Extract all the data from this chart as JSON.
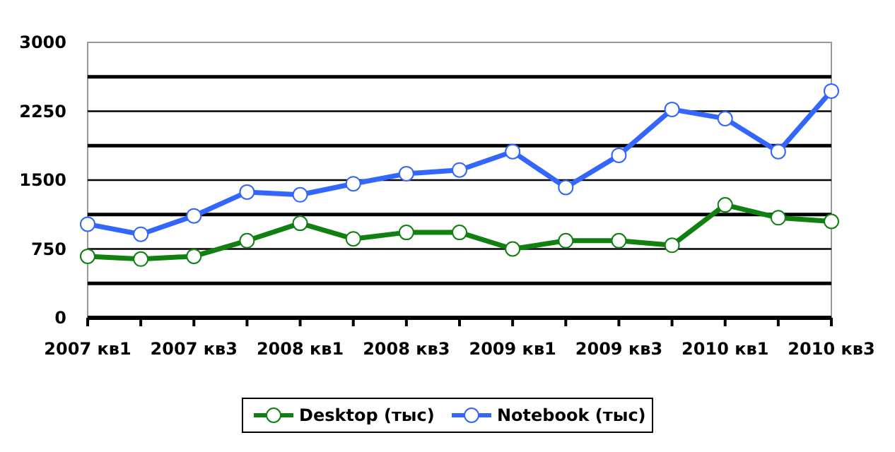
{
  "chart_data": {
    "type": "line",
    "categories": [
      "2007 кв1",
      null,
      "2007 кв3",
      null,
      "2008 кв1",
      null,
      "2008 кв3",
      null,
      "2009 кв1",
      null,
      "2009 кв3",
      null,
      "2010 кв1",
      null,
      "2010 кв3"
    ],
    "series": [
      {
        "name": "Desktop (тыс)",
        "color": "#108010",
        "values": [
          670,
          640,
          670,
          840,
          1030,
          860,
          930,
          930,
          750,
          840,
          840,
          790,
          1230,
          1090,
          1050
        ]
      },
      {
        "name": "Notebook (тыс)",
        "color": "#3366ff",
        "values": [
          1020,
          910,
          1110,
          1370,
          1340,
          1460,
          1570,
          1610,
          1810,
          1420,
          1770,
          2270,
          2170,
          1810,
          2470
        ]
      }
    ],
    "ylim": [
      0,
      3000
    ],
    "yticks": [
      0,
      {
        "value": 375,
        "label": null
      },
      750,
      {
        "value": 1125,
        "label": null
      },
      1500,
      {
        "value": 1875,
        "label": null
      },
      2250,
      {
        "value": 2625,
        "label": null
      },
      3000
    ],
    "grid": "y",
    "legend": "bottom",
    "marker": "circle",
    "line_style": "solid"
  }
}
